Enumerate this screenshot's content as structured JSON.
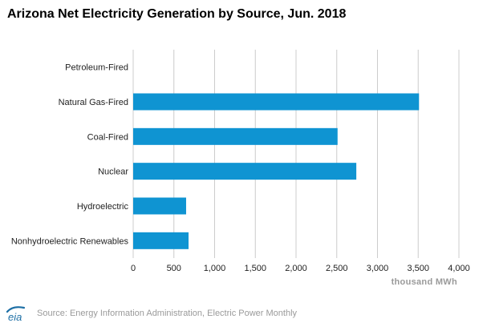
{
  "title": "Arizona Net Electricity Generation by Source, Jun. 2018",
  "source_text": "Source: Energy Information Administration, Electric Power Monthly",
  "logo_text": "eia",
  "colors": {
    "bar": "#0f94d2",
    "grid": "#cccccc",
    "logo": "#1d6fa5"
  },
  "chart_data": {
    "type": "bar",
    "orientation": "horizontal",
    "title": "Arizona Net Electricity Generation by Source, Jun. 2018",
    "categories": [
      "Petroleum-Fired",
      "Natural Gas-Fired",
      "Coal-Fired",
      "Nuclear",
      "Hydroelectric",
      "Nonhydroelectric Renewables"
    ],
    "values": [
      0,
      3510,
      2510,
      2740,
      650,
      680
    ],
    "xlabel": "thousand MWh",
    "xlim": [
      0,
      4000
    ],
    "xticks": [
      0,
      500,
      1000,
      1500,
      2000,
      2500,
      3000,
      3500,
      4000
    ],
    "xtick_labels": [
      "0",
      "500",
      "1,000",
      "1,500",
      "2,000",
      "2,500",
      "3,000",
      "3,500",
      "4,000"
    ],
    "grid": true,
    "legend": "none"
  }
}
